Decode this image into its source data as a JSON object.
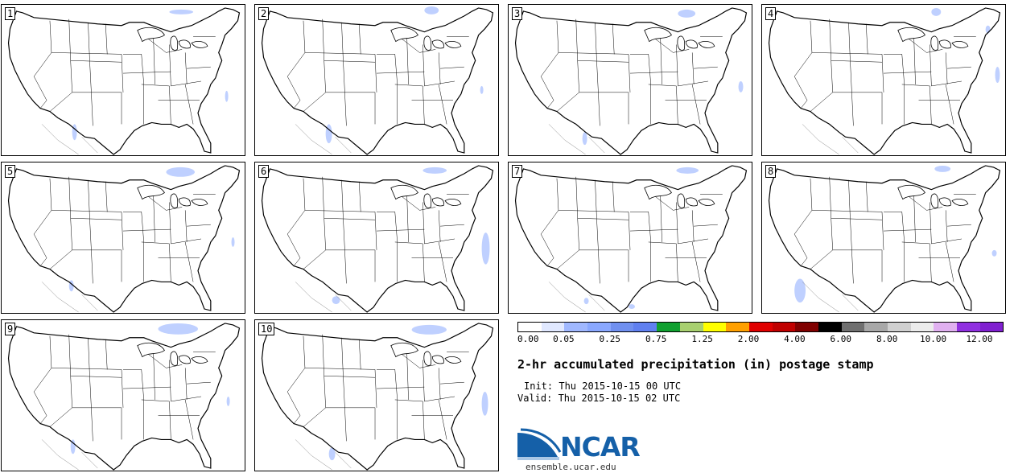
{
  "map": {
    "type": "precipitation postage stamp",
    "panels": [
      {
        "label": "1"
      },
      {
        "label": "2"
      },
      {
        "label": "3"
      },
      {
        "label": "4"
      },
      {
        "label": "5"
      },
      {
        "label": "6"
      },
      {
        "label": "7"
      },
      {
        "label": "8"
      },
      {
        "label": "9"
      },
      {
        "label": "10"
      }
    ]
  },
  "colorbar": {
    "colors": [
      "#ffffff",
      "#e0e8ff",
      "#a0b8ff",
      "#8aa8ff",
      "#7090f0",
      "#6080f0",
      "#10a030",
      "#a8d070",
      "#ffff00",
      "#ffa000",
      "#e00000",
      "#c00000",
      "#800000",
      "#000000",
      "#707070",
      "#a8a8a8",
      "#d0d0d0",
      "#ececec",
      "#e0b0f0",
      "#9030e0",
      "#8020d0"
    ],
    "labels": [
      "0.00",
      "0.05",
      "0.25",
      "0.75",
      "1.25",
      "2.00",
      "4.00",
      "6.00",
      "8.00",
      "10.00",
      "12.00"
    ]
  },
  "title": "2-hr accumulated precipitation (in) postage stamp",
  "init_line": "Init: Thu 2015-10-15 00 UTC",
  "valid_line": "Valid: Thu 2015-10-15 02 UTC",
  "logo": {
    "word": "NCAR",
    "url": "ensemble.ucar.edu"
  }
}
